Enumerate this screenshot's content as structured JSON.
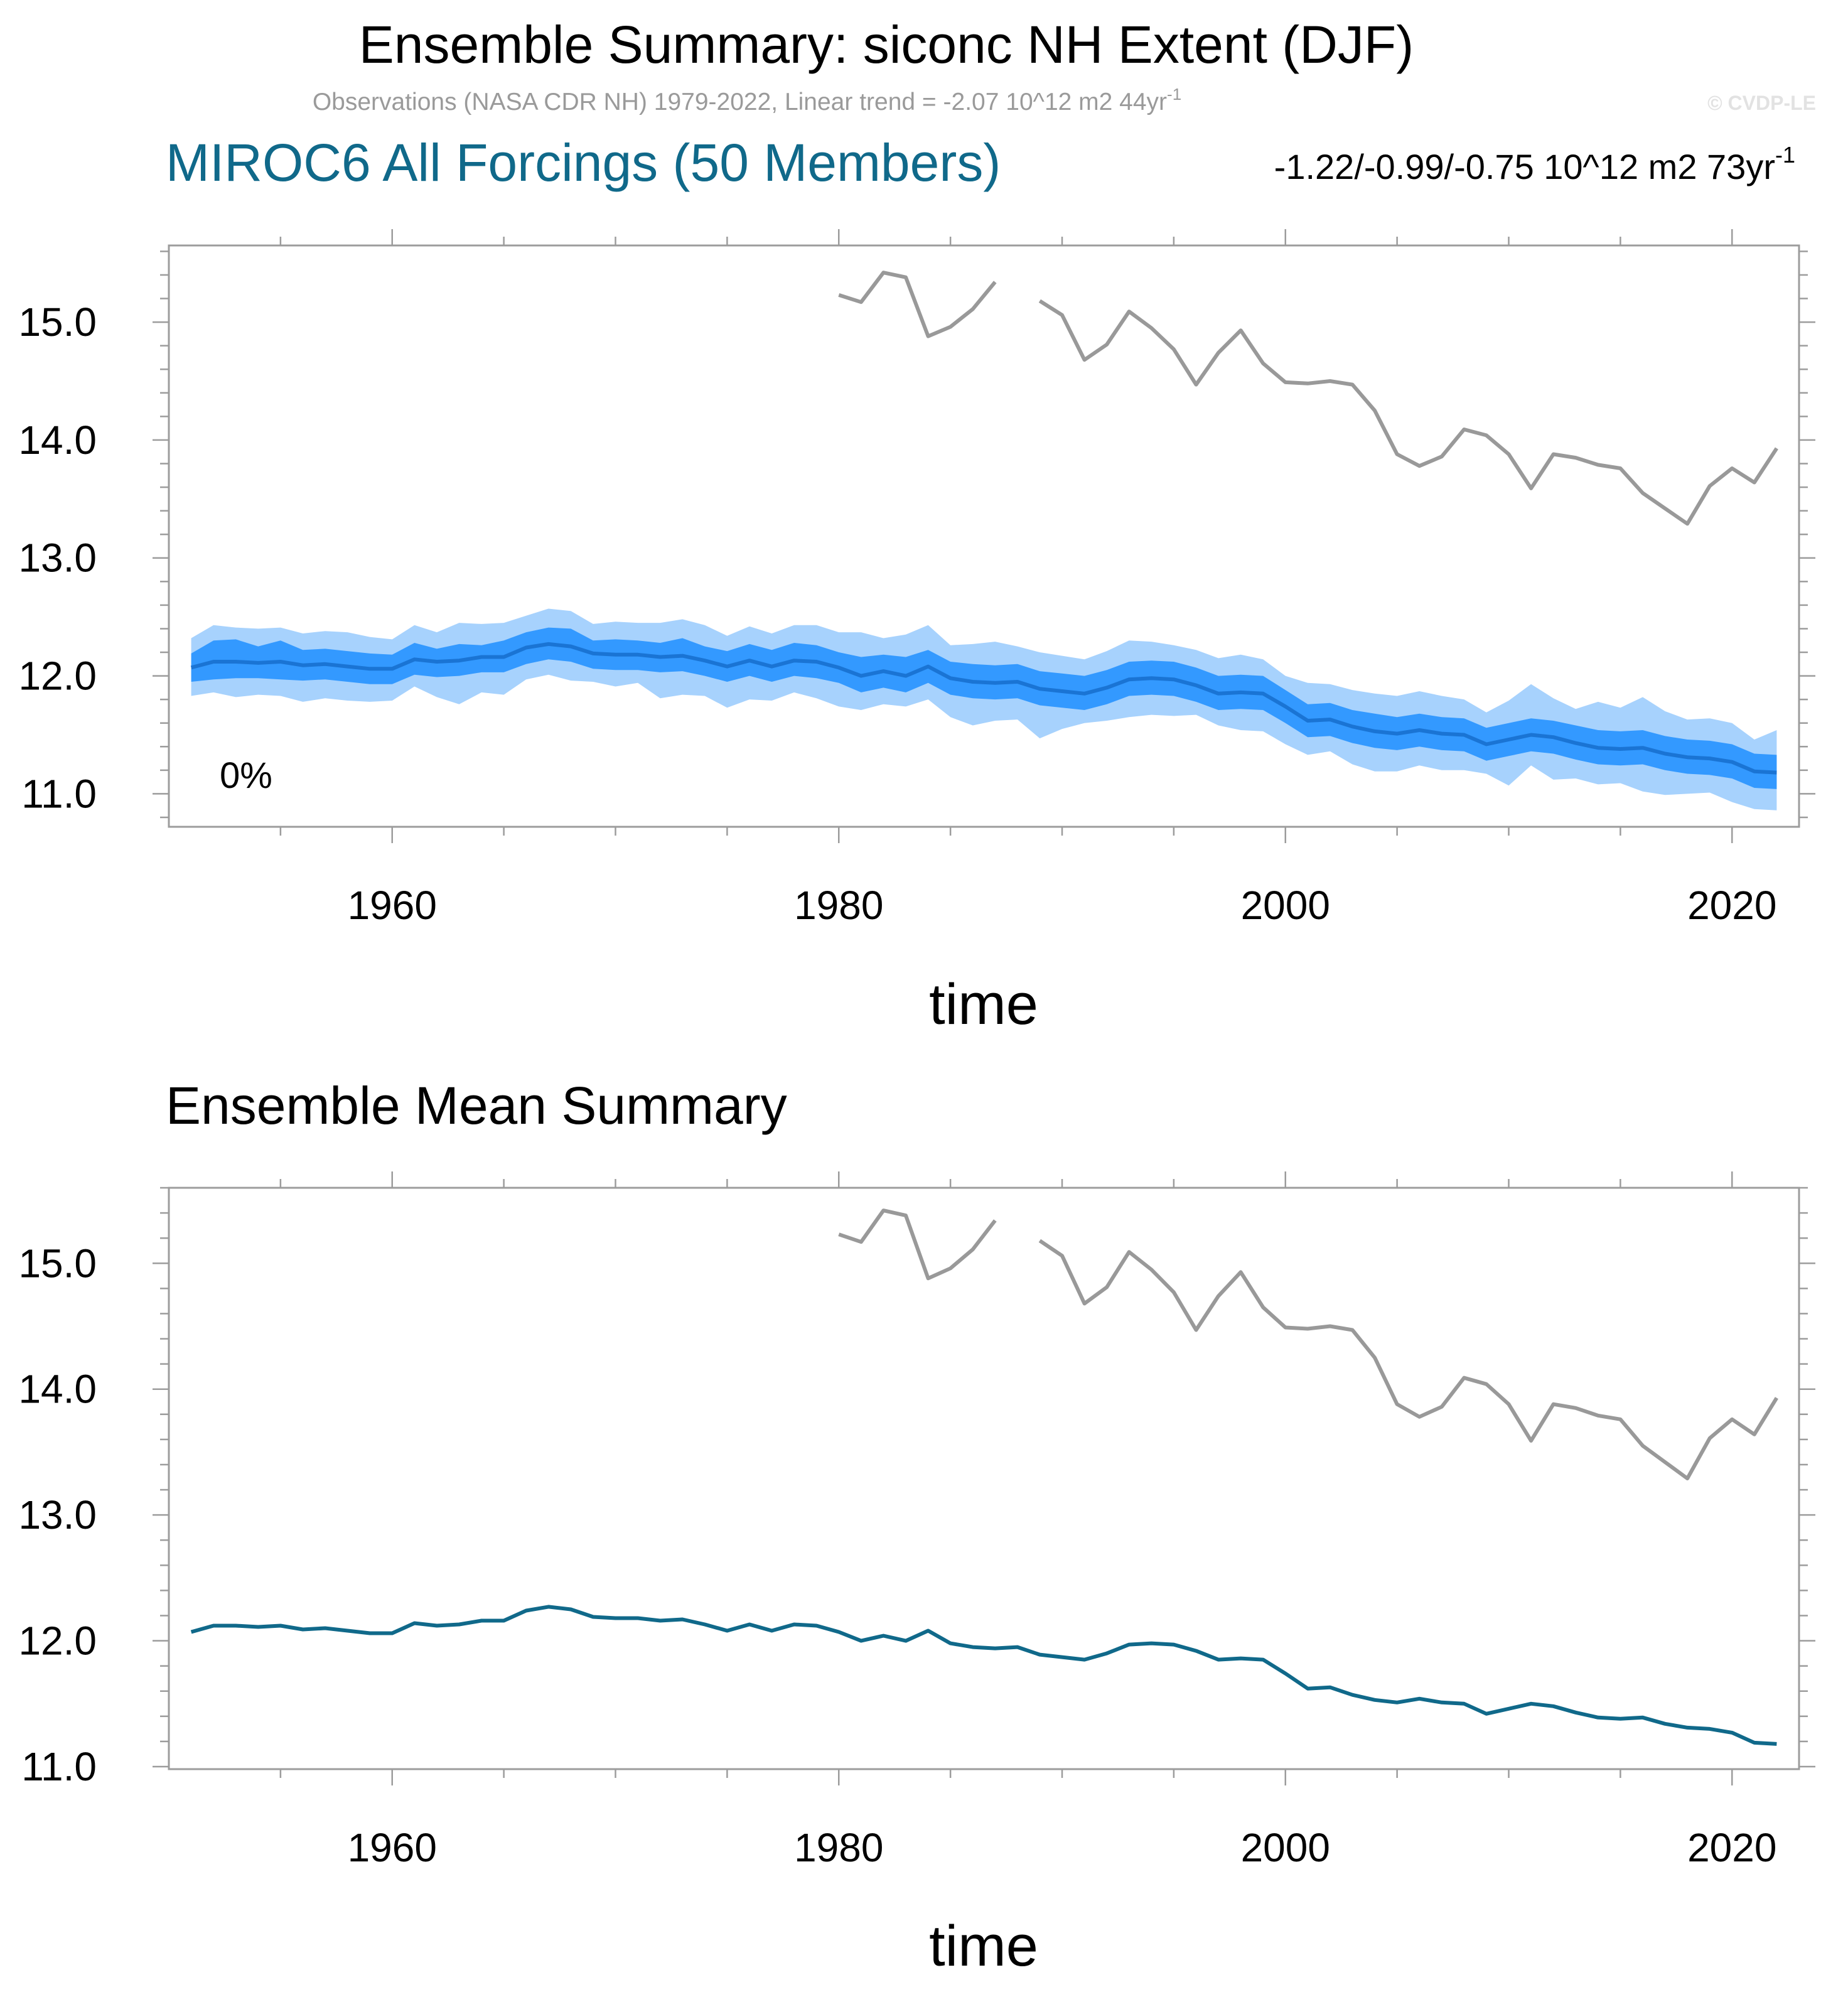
{
  "header": {
    "title": "Ensemble Summary: siconc NH Extent (DJF)",
    "obs_subtitle": "Observations (NASA CDR NH) 1979-2022, Linear trend = -2.07 10^12 m2 44yr",
    "obs_subtitle_sup": "-1",
    "copyright": "© CVDP-LE"
  },
  "panel1": {
    "model_title": "MIROC6 All Forcings (50 Members)",
    "trend_text": "-1.22/-0.99/-0.75 10^12 m2 73yr",
    "trend_sup": "-1",
    "percent_label": "0%",
    "xlabel": "time"
  },
  "panel2": {
    "title": "Ensemble Mean Summary",
    "xlabel": "time"
  },
  "colors": {
    "observations": "#999999",
    "ensemble_mean": "#10698a",
    "mean_line_panel1": "#1a74d4",
    "band_outer": "#a7d2fd",
    "band_inner": "#3399ff"
  },
  "chart_data": [
    {
      "type": "line",
      "panel": "panel1",
      "xlim": [
        1950,
        2023
      ],
      "ylim": [
        10.72,
        15.65
      ],
      "yticks": [
        11.0,
        12.0,
        13.0,
        14.0,
        15.0
      ],
      "ytick_labels": [
        "11.0",
        "12.0",
        "13.0",
        "14.0",
        "15.0"
      ],
      "xticks": [
        1960,
        1980,
        2000,
        2020
      ],
      "xtick_labels": [
        "1960",
        "1980",
        "2000",
        "2020"
      ],
      "xlabel": "time",
      "ylabel": "",
      "start_year": 1951,
      "series": [
        {
          "name": "Ensemble mean",
          "values": [
            12.07,
            12.12,
            12.12,
            12.11,
            12.12,
            12.09,
            12.1,
            12.08,
            12.06,
            12.06,
            12.14,
            12.12,
            12.13,
            12.16,
            12.16,
            12.24,
            12.27,
            12.25,
            12.19,
            12.18,
            12.18,
            12.16,
            12.17,
            12.13,
            12.08,
            12.13,
            12.08,
            12.13,
            12.12,
            12.07,
            12.0,
            12.04,
            12.0,
            12.08,
            11.98,
            11.95,
            11.94,
            11.95,
            11.89,
            11.87,
            11.85,
            11.9,
            11.97,
            11.98,
            11.97,
            11.92,
            11.85,
            11.86,
            11.85,
            11.74,
            11.62,
            11.63,
            11.57,
            11.53,
            11.51,
            11.54,
            11.51,
            11.5,
            11.42,
            11.46,
            11.5,
            11.48,
            11.43,
            11.39,
            11.38,
            11.39,
            11.34,
            11.31,
            11.3,
            11.27,
            11.19,
            11.18
          ]
        },
        {
          "name": "Inner range upper",
          "values": [
            12.19,
            12.3,
            12.31,
            12.25,
            12.3,
            12.22,
            12.23,
            12.21,
            12.19,
            12.18,
            12.28,
            12.23,
            12.27,
            12.26,
            12.3,
            12.37,
            12.41,
            12.4,
            12.3,
            12.31,
            12.3,
            12.28,
            12.32,
            12.25,
            12.21,
            12.27,
            12.22,
            12.28,
            12.26,
            12.2,
            12.16,
            12.18,
            12.16,
            12.22,
            12.12,
            12.1,
            12.09,
            12.1,
            12.04,
            12.02,
            12.0,
            12.05,
            12.12,
            12.13,
            12.12,
            12.07,
            12.0,
            12.01,
            12.0,
            11.88,
            11.76,
            11.77,
            11.71,
            11.68,
            11.65,
            11.68,
            11.65,
            11.64,
            11.56,
            11.6,
            11.64,
            11.62,
            11.58,
            11.54,
            11.53,
            11.54,
            11.49,
            11.46,
            11.45,
            11.42,
            11.34,
            11.33
          ]
        },
        {
          "name": "Inner range lower",
          "values": [
            11.95,
            11.97,
            11.98,
            11.98,
            11.97,
            11.96,
            11.97,
            11.95,
            11.93,
            11.93,
            12.01,
            11.99,
            12.0,
            12.03,
            12.03,
            12.1,
            12.14,
            12.12,
            12.06,
            12.05,
            12.05,
            12.03,
            12.04,
            12.0,
            11.95,
            12.0,
            11.95,
            12.0,
            11.98,
            11.94,
            11.86,
            11.9,
            11.86,
            11.94,
            11.84,
            11.81,
            11.8,
            11.81,
            11.75,
            11.73,
            11.71,
            11.76,
            11.83,
            11.84,
            11.83,
            11.78,
            11.71,
            11.72,
            11.71,
            11.6,
            11.48,
            11.49,
            11.43,
            11.39,
            11.37,
            11.4,
            11.37,
            11.36,
            11.28,
            11.32,
            11.36,
            11.34,
            11.29,
            11.25,
            11.24,
            11.25,
            11.2,
            11.17,
            11.16,
            11.13,
            11.05,
            11.04
          ]
        },
        {
          "name": "Outer range upper",
          "values": [
            12.32,
            12.43,
            12.41,
            12.4,
            12.41,
            12.36,
            12.38,
            12.37,
            12.33,
            12.31,
            12.43,
            12.37,
            12.45,
            12.44,
            12.45,
            12.51,
            12.57,
            12.55,
            12.44,
            12.46,
            12.45,
            12.45,
            12.48,
            12.43,
            12.34,
            12.42,
            12.36,
            12.43,
            12.43,
            12.37,
            12.37,
            12.32,
            12.35,
            12.43,
            12.26,
            12.27,
            12.29,
            12.25,
            12.2,
            12.17,
            12.14,
            12.21,
            12.3,
            12.29,
            12.26,
            12.22,
            12.15,
            12.18,
            12.14,
            12.0,
            11.94,
            11.93,
            11.88,
            11.85,
            11.83,
            11.87,
            11.83,
            11.8,
            11.69,
            11.79,
            11.93,
            11.81,
            11.72,
            11.78,
            11.73,
            11.82,
            11.7,
            11.63,
            11.64,
            11.6,
            11.46,
            11.54
          ]
        },
        {
          "name": "Outer range lower",
          "values": [
            11.83,
            11.86,
            11.82,
            11.84,
            11.83,
            11.78,
            11.81,
            11.79,
            11.78,
            11.79,
            11.91,
            11.82,
            11.76,
            11.86,
            11.84,
            11.97,
            12.01,
            11.96,
            11.95,
            11.91,
            11.94,
            11.81,
            11.84,
            11.83,
            11.73,
            11.8,
            11.79,
            11.86,
            11.81,
            11.74,
            11.71,
            11.76,
            11.74,
            11.8,
            11.65,
            11.58,
            11.62,
            11.63,
            11.47,
            11.55,
            11.6,
            11.62,
            11.65,
            11.67,
            11.66,
            11.67,
            11.58,
            11.54,
            11.53,
            11.42,
            11.33,
            11.36,
            11.25,
            11.19,
            11.19,
            11.24,
            11.2,
            11.2,
            11.17,
            11.07,
            11.24,
            11.12,
            11.13,
            11.08,
            11.09,
            11.02,
            10.99,
            11.0,
            11.01,
            10.93,
            10.87,
            10.86
          ]
        },
        {
          "name": "Observations (NASA CDR NH)",
          "start_year": 1980,
          "values": [
            15.23,
            15.17,
            15.42,
            15.38,
            14.88,
            14.96,
            15.11,
            15.34,
            null,
            15.18,
            15.06,
            14.68,
            14.81,
            15.09,
            14.95,
            14.77,
            14.47,
            14.74,
            14.93,
            14.65,
            14.49,
            14.48,
            14.5,
            14.47,
            14.25,
            13.88,
            13.78,
            13.86,
            14.09,
            14.04,
            13.88,
            13.59,
            13.88,
            13.85,
            13.79,
            13.76,
            13.55,
            13.42,
            13.29,
            13.61,
            13.76,
            13.64,
            13.93
          ]
        }
      ]
    },
    {
      "type": "line",
      "panel": "panel2",
      "xlim": [
        1950,
        2023
      ],
      "ylim": [
        10.98,
        15.6
      ],
      "yticks": [
        11.0,
        12.0,
        13.0,
        14.0,
        15.0
      ],
      "ytick_labels": [
        "11.0",
        "12.0",
        "13.0",
        "14.0",
        "15.0"
      ],
      "xticks": [
        1960,
        1980,
        2000,
        2020
      ],
      "xtick_labels": [
        "1960",
        "1980",
        "2000",
        "2020"
      ],
      "xlabel": "time",
      "ylabel": "",
      "start_year": 1951,
      "series": [
        {
          "name": "Ensemble mean",
          "ref": "panel1:Ensemble mean"
        },
        {
          "name": "Observations (NASA CDR NH)",
          "ref": "panel1:Observations (NASA CDR NH)"
        }
      ]
    }
  ]
}
